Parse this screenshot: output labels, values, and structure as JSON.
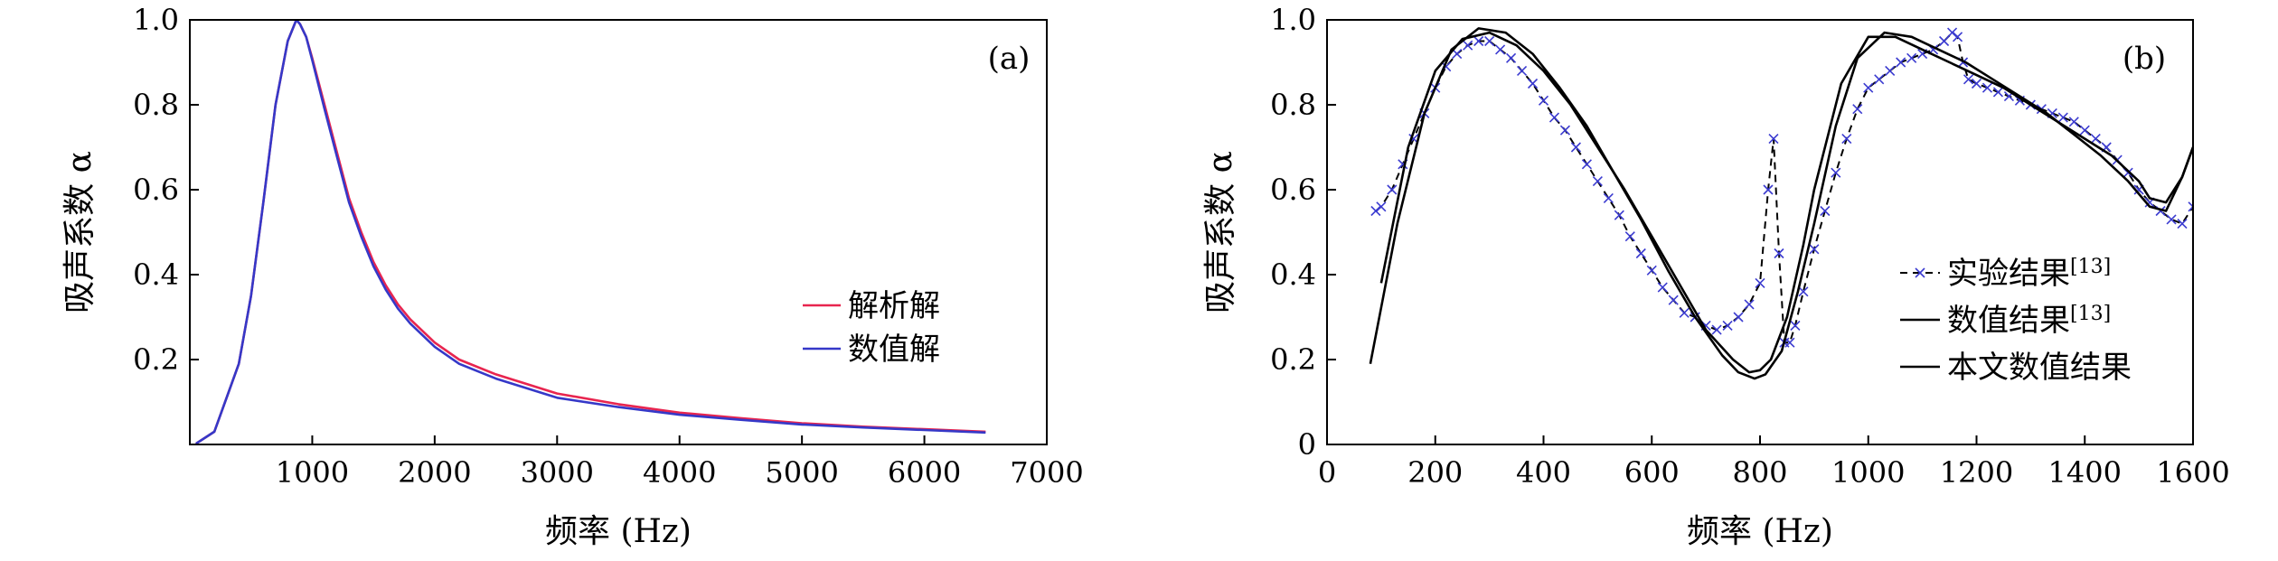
{
  "chart_data": [
    {
      "type": "line",
      "panel_label": "(a)",
      "xlabel": "频率 (Hz)",
      "ylabel": "吸声系数 α",
      "xlim": [
        0,
        7000
      ],
      "ylim": [
        0,
        1.0
      ],
      "x_ticks": [
        1000,
        2000,
        3000,
        4000,
        5000,
        6000,
        7000
      ],
      "y_ticks": [
        0.2,
        0.4,
        0.6,
        0.8,
        1.0
      ],
      "legend_position": "right",
      "series": [
        {
          "name": "解析解",
          "color": "#e8254f",
          "x": [
            50,
            200,
            400,
            500,
            600,
            700,
            800,
            870,
            900,
            950,
            1000,
            1100,
            1200,
            1300,
            1400,
            1500,
            1600,
            1700,
            1800,
            2000,
            2200,
            2500,
            3000,
            3500,
            4000,
            4500,
            5000,
            5500,
            6000,
            6500
          ],
          "y": [
            0.002,
            0.03,
            0.19,
            0.35,
            0.57,
            0.8,
            0.95,
            1.0,
            0.99,
            0.96,
            0.91,
            0.8,
            0.69,
            0.58,
            0.5,
            0.43,
            0.375,
            0.33,
            0.295,
            0.24,
            0.2,
            0.165,
            0.12,
            0.095,
            0.075,
            0.062,
            0.05,
            0.042,
            0.036,
            0.03
          ]
        },
        {
          "name": "数值解",
          "color": "#3538c8",
          "x": [
            50,
            200,
            400,
            500,
            600,
            700,
            800,
            870,
            900,
            950,
            1000,
            1100,
            1200,
            1300,
            1400,
            1500,
            1600,
            1700,
            1800,
            2000,
            2200,
            2500,
            3000,
            3500,
            4000,
            4500,
            5000,
            5500,
            6000,
            6500
          ],
          "y": [
            0.002,
            0.03,
            0.19,
            0.35,
            0.57,
            0.8,
            0.95,
            1.0,
            0.99,
            0.96,
            0.905,
            0.79,
            0.68,
            0.57,
            0.49,
            0.42,
            0.365,
            0.32,
            0.285,
            0.23,
            0.19,
            0.155,
            0.11,
            0.088,
            0.07,
            0.058,
            0.047,
            0.04,
            0.034,
            0.028
          ]
        }
      ]
    },
    {
      "type": "line",
      "panel_label": "(b)",
      "xlabel": "频率 (Hz)",
      "ylabel": "吸声系数 α",
      "xlim": [
        0,
        1600
      ],
      "ylim": [
        0,
        1.0
      ],
      "x_ticks": [
        0,
        200,
        400,
        600,
        800,
        1000,
        1200,
        1400,
        1600
      ],
      "y_ticks": [
        0,
        0.2,
        0.4,
        0.6,
        0.8,
        1.0
      ],
      "legend_position": "lower-right",
      "series": [
        {
          "name": "实验结果",
          "name_sup": "[13]",
          "style": "dashed-x-markers",
          "color": "#000000",
          "x": [
            90,
            100,
            120,
            140,
            160,
            180,
            200,
            220,
            240,
            260,
            280,
            300,
            320,
            340,
            360,
            380,
            400,
            420,
            440,
            460,
            480,
            500,
            520,
            540,
            560,
            580,
            600,
            620,
            640,
            660,
            680,
            700,
            720,
            740,
            760,
            780,
            800,
            815,
            825,
            835,
            845,
            855,
            865,
            880,
            900,
            920,
            940,
            960,
            980,
            1000,
            1020,
            1040,
            1060,
            1080,
            1100,
            1120,
            1140,
            1155,
            1165,
            1175,
            1185,
            1200,
            1220,
            1240,
            1260,
            1280,
            1300,
            1320,
            1340,
            1360,
            1380,
            1400,
            1420,
            1440,
            1460,
            1480,
            1500,
            1520,
            1540,
            1560,
            1580,
            1600
          ],
          "y": [
            0.55,
            0.56,
            0.6,
            0.66,
            0.72,
            0.78,
            0.84,
            0.89,
            0.92,
            0.94,
            0.95,
            0.95,
            0.93,
            0.91,
            0.88,
            0.85,
            0.81,
            0.77,
            0.74,
            0.7,
            0.66,
            0.62,
            0.58,
            0.54,
            0.49,
            0.45,
            0.41,
            0.37,
            0.34,
            0.31,
            0.3,
            0.28,
            0.27,
            0.28,
            0.3,
            0.33,
            0.38,
            0.6,
            0.72,
            0.45,
            0.24,
            0.24,
            0.28,
            0.36,
            0.46,
            0.55,
            0.64,
            0.72,
            0.79,
            0.84,
            0.86,
            0.88,
            0.9,
            0.91,
            0.92,
            0.93,
            0.95,
            0.97,
            0.96,
            0.9,
            0.86,
            0.85,
            0.84,
            0.83,
            0.82,
            0.81,
            0.8,
            0.79,
            0.78,
            0.77,
            0.76,
            0.74,
            0.72,
            0.7,
            0.67,
            0.64,
            0.6,
            0.57,
            0.55,
            0.53,
            0.52,
            0.56
          ]
        },
        {
          "name": "数值结果",
          "name_sup": "[13]",
          "style": "solid",
          "color": "#000000",
          "x": [
            100,
            150,
            200,
            250,
            300,
            350,
            400,
            450,
            500,
            550,
            600,
            650,
            700,
            750,
            780,
            800,
            820,
            850,
            880,
            900,
            950,
            1000,
            1050,
            1100,
            1150,
            1200,
            1250,
            1300,
            1350,
            1400,
            1450,
            1500,
            1520,
            1550,
            1580,
            1600
          ],
          "y": [
            0.38,
            0.7,
            0.88,
            0.955,
            0.97,
            0.94,
            0.88,
            0.8,
            0.7,
            0.6,
            0.49,
            0.38,
            0.27,
            0.2,
            0.17,
            0.175,
            0.2,
            0.3,
            0.47,
            0.6,
            0.85,
            0.96,
            0.96,
            0.93,
            0.9,
            0.87,
            0.84,
            0.8,
            0.76,
            0.72,
            0.68,
            0.62,
            0.58,
            0.57,
            0.63,
            0.7
          ]
        },
        {
          "name": "本文数值结果",
          "style": "solid",
          "color": "#000000",
          "x": [
            80,
            130,
            180,
            230,
            280,
            330,
            380,
            430,
            480,
            530,
            580,
            630,
            680,
            730,
            760,
            790,
            810,
            840,
            870,
            900,
            940,
            980,
            1030,
            1080,
            1130,
            1180,
            1230,
            1280,
            1330,
            1380,
            1430,
            1480,
            1520,
            1550,
            1580,
            1600
          ],
          "y": [
            0.19,
            0.52,
            0.78,
            0.93,
            0.98,
            0.97,
            0.92,
            0.84,
            0.75,
            0.64,
            0.53,
            0.41,
            0.3,
            0.21,
            0.17,
            0.155,
            0.165,
            0.22,
            0.36,
            0.52,
            0.75,
            0.91,
            0.97,
            0.96,
            0.93,
            0.9,
            0.86,
            0.82,
            0.78,
            0.73,
            0.68,
            0.62,
            0.56,
            0.55,
            0.63,
            0.7
          ]
        }
      ]
    }
  ]
}
